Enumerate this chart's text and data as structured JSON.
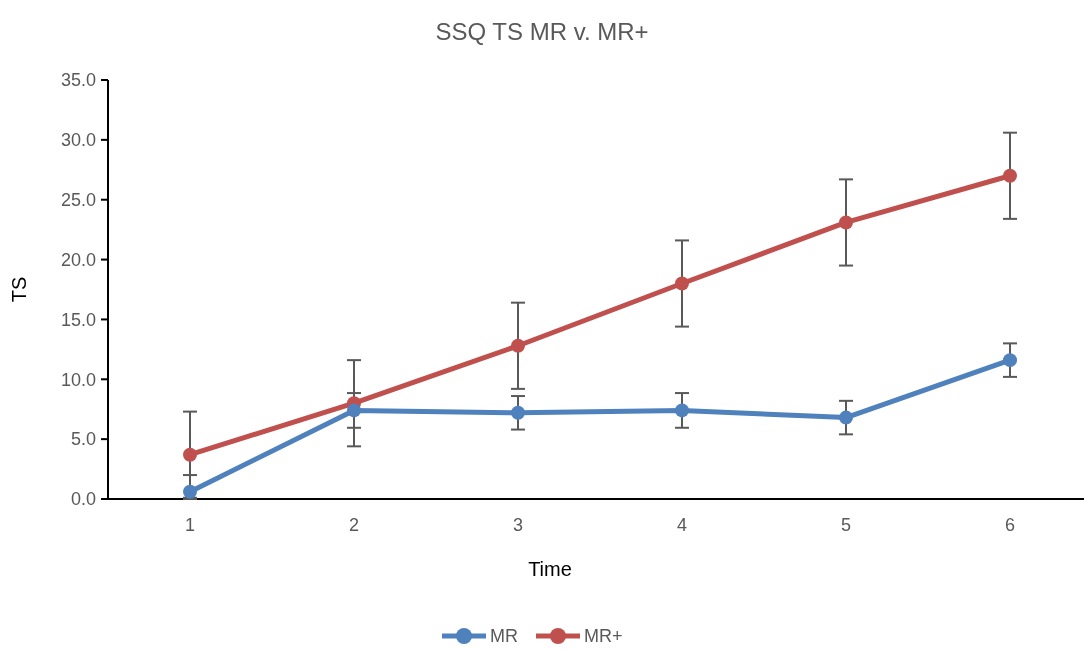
{
  "chart_data": {
    "type": "line",
    "title": "SSQ TS MR v. MR+",
    "xlabel": "Time",
    "ylabel": "TS",
    "categories": [
      "1",
      "2",
      "3",
      "4",
      "5",
      "6"
    ],
    "series": [
      {
        "name": "MR",
        "color": "#4f81bd",
        "values": [
          0.6,
          7.4,
          7.2,
          7.4,
          6.8,
          11.6
        ],
        "errors": [
          [
            0.0,
            2.0
          ],
          1.45,
          1.4,
          1.45,
          1.4,
          1.4
        ]
      },
      {
        "name": "MR+",
        "color": "#c0504d",
        "values": [
          3.7,
          8.0,
          12.8,
          18.0,
          23.1,
          27.0
        ],
        "errors": [
          3.6,
          3.6,
          3.6,
          3.6,
          3.6,
          3.6
        ]
      }
    ],
    "ylim": [
      0,
      35
    ],
    "yticks": [
      {
        "value": 0,
        "label": "0.0"
      },
      {
        "value": 5,
        "label": "5.0"
      },
      {
        "value": 10,
        "label": "10.0"
      },
      {
        "value": 15,
        "label": "15.0"
      },
      {
        "value": 20,
        "label": "20.0"
      },
      {
        "value": 25,
        "label": "25.0"
      },
      {
        "value": 30,
        "label": "30.0"
      },
      {
        "value": 35,
        "label": "35.0"
      }
    ],
    "legend": "bottom",
    "marker": "circle",
    "line_style": "solid"
  }
}
